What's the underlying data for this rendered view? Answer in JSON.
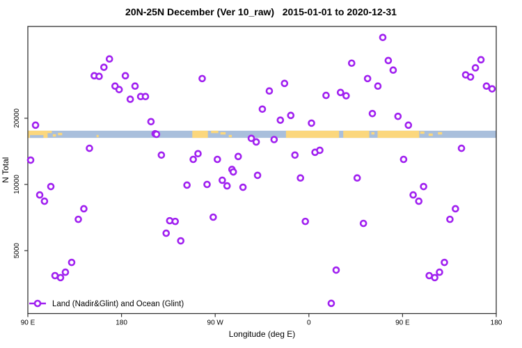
{
  "title": "20N-25N December (Ver 10_raw)   2015-01-01 to 2020-12-31",
  "legend": {
    "label": "Land (Nadir&Glint) and Ocean (Glint)"
  },
  "axes": {
    "x_label": "Longitude (deg E)",
    "y_label": "N Total",
    "x_tick_labels": [
      "90 E",
      "180",
      "90 W",
      "0",
      "90 E",
      "180"
    ],
    "y_tick_labels": [
      "5000",
      "10000",
      "20000"
    ],
    "y_tick_values": [
      5000,
      10000,
      20000
    ]
  },
  "colors": {
    "point": "#A020F0",
    "point_fill": "#ffffff",
    "land": "#FBD77D",
    "ocean": "#A9BFDC",
    "frame": "#333333",
    "text": "#000000"
  },
  "chart_data": {
    "type": "scatter",
    "title": "20N-25N December (Ver 10_raw)   2015-01-01 to 2020-12-31",
    "xlabel": "Longitude (deg E)",
    "ylabel": "N Total",
    "y_scale": "log",
    "legend": [
      "Land (Nadir&Glint) and Ocean (Glint)"
    ],
    "x_axis": {
      "unit": "degrees east along axis, 0 = 90E at left edge (longitude wraps through 180, 90W, 0, 90E to 180)",
      "range": [
        0,
        450
      ],
      "tick_positions_deg": [
        0,
        90,
        180,
        270,
        360,
        450
      ],
      "tick_labels": [
        "90 E",
        "180",
        "90 W",
        "0",
        "90 E",
        "180"
      ]
    },
    "y_axis": {
      "range": [
        2600,
        52000
      ],
      "ticks": [
        5000,
        10000,
        20000
      ],
      "scale": "log"
    },
    "point_format": [
      "lon_axis_deg",
      "n_total"
    ],
    "points": [
      [
        7.4,
        18600
      ],
      [
        2.7,
        12900
      ],
      [
        11.4,
        8960
      ],
      [
        16,
        8390
      ],
      [
        22.1,
        9780
      ],
      [
        26.1,
        3850
      ],
      [
        31.4,
        3770
      ],
      [
        36.1,
        3990
      ],
      [
        42.1,
        4420
      ],
      [
        48.5,
        6940
      ],
      [
        53.8,
        7750
      ],
      [
        59.2,
        14600
      ],
      [
        63.8,
        31200
      ],
      [
        68.5,
        31000
      ],
      [
        73.1,
        34100
      ],
      [
        78.4,
        37200
      ],
      [
        83.8,
        28000
      ],
      [
        87.7,
        27000
      ],
      [
        93.7,
        31200
      ],
      [
        98.4,
        24400
      ],
      [
        103,
        28000
      ],
      [
        108.4,
        25100
      ],
      [
        113,
        25100
      ],
      [
        118.3,
        19300
      ],
      [
        122.3,
        17000
      ],
      [
        123.6,
        16900
      ],
      [
        128.3,
        13600
      ],
      [
        132.9,
        6000
      ],
      [
        136.3,
        6840
      ],
      [
        141.6,
        6790
      ],
      [
        146.9,
        5540
      ],
      [
        152.9,
        9930
      ],
      [
        158.9,
        13000
      ],
      [
        163.5,
        13800
      ],
      [
        167.5,
        30300
      ],
      [
        172.2,
        10000
      ],
      [
        178.1,
        7100
      ],
      [
        182.1,
        13000
      ],
      [
        186.8,
        10450
      ],
      [
        191.4,
        9850
      ],
      [
        196.1,
        11700
      ],
      [
        197.4,
        11400
      ],
      [
        202.1,
        13400
      ],
      [
        206.7,
        9710
      ],
      [
        214.7,
        16200
      ],
      [
        219.4,
        15600
      ],
      [
        220.7,
        11000
      ],
      [
        225.3,
        22000
      ],
      [
        232,
        26600
      ],
      [
        236.6,
        16000
      ],
      [
        242.6,
        19600
      ],
      [
        246.6,
        28800
      ],
      [
        252.6,
        20600
      ],
      [
        256.6,
        13600
      ],
      [
        261.9,
        10700
      ],
      [
        266.6,
        6790
      ],
      [
        272.5,
        19000
      ],
      [
        275.9,
        14000
      ],
      [
        280.5,
        14300
      ],
      [
        286.5,
        25400
      ],
      [
        291.5,
        2880
      ],
      [
        296.2,
        4080
      ],
      [
        300.4,
        26200
      ],
      [
        305.8,
        25300
      ],
      [
        311.1,
        35600
      ],
      [
        316.4,
        10700
      ],
      [
        322.4,
        6650
      ],
      [
        326.4,
        30300
      ],
      [
        331,
        21000
      ],
      [
        336.3,
        28000
      ],
      [
        341,
        46600
      ],
      [
        346.3,
        36600
      ],
      [
        351,
        33100
      ],
      [
        355.6,
        20400
      ],
      [
        361,
        13000
      ],
      [
        365.6,
        18600
      ],
      [
        370.2,
        8960
      ],
      [
        375.6,
        8390
      ],
      [
        380.2,
        9780
      ],
      [
        385.6,
        3850
      ],
      [
        390.9,
        3770
      ],
      [
        395.5,
        3990
      ],
      [
        400.2,
        4420
      ],
      [
        405.5,
        6940
      ],
      [
        410.8,
        7750
      ],
      [
        416.6,
        14600
      ],
      [
        420.6,
        31500
      ],
      [
        425.3,
        30800
      ],
      [
        430,
        33900
      ],
      [
        435.3,
        36900
      ],
      [
        440.6,
        28000
      ],
      [
        446,
        27200
      ]
    ],
    "map_strip": {
      "description": "world land/ocean band drawn across plot at 20N-25N",
      "n_total_band": [
        16280,
        17550
      ],
      "ocean_span_deg": [
        0,
        450
      ],
      "land_segments_deg": [
        [
          0,
          19
        ],
        [
          158,
          173
        ],
        [
          248,
          299
        ],
        [
          303,
          328
        ],
        [
          336,
          376
        ]
      ],
      "islands_deg": [
        [
          19,
          23,
          0
        ],
        [
          24,
          27,
          5
        ],
        [
          29,
          33,
          3
        ],
        [
          66,
          68,
          6
        ],
        [
          176,
          183,
          0
        ],
        [
          185,
          190,
          2
        ],
        [
          193,
          196,
          6
        ],
        [
          330,
          333,
          2
        ],
        [
          377,
          381,
          1
        ],
        [
          385,
          389,
          4
        ],
        [
          394,
          398,
          2
        ]
      ],
      "water_patches_deg": [
        [
          2,
          15
        ]
      ]
    }
  }
}
